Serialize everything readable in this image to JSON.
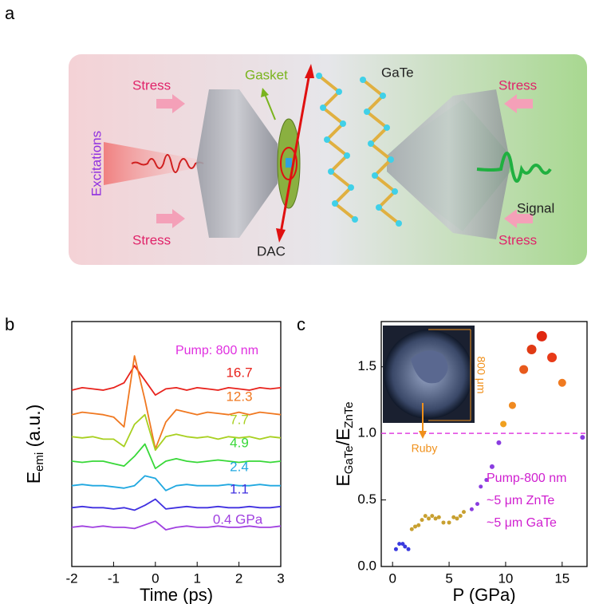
{
  "panel_labels": [
    "a",
    "b",
    "c"
  ],
  "diagram": {
    "stress": [
      "Stress",
      "Stress",
      "Stress",
      "Stress"
    ],
    "gasket": "Gasket",
    "gate": "GaTe",
    "excitations": "Excitations",
    "signal": "Signal",
    "dac": "DAC"
  },
  "chart_data": [
    {
      "type": "line",
      "xlabel": "Time (ps)",
      "ylabel": [
        "E",
        "emi",
        " (a.u.)"
      ],
      "annotation": "Pump: 800 nm",
      "annotation_color": "#e030e0",
      "xlim": [
        -2,
        3
      ],
      "xticks": [
        -2,
        -1,
        0,
        1,
        2,
        3
      ],
      "ylim": [
        0,
        10
      ],
      "x": [
        -2,
        -1.75,
        -1.5,
        -1.25,
        -1,
        -0.75,
        -0.5,
        -0.25,
        0,
        0.25,
        0.5,
        0.75,
        1,
        1.25,
        1.5,
        1.75,
        2,
        2.25,
        2.5,
        2.75,
        3
      ],
      "series": [
        {
          "name": "16.7",
          "color": "#e8221c",
          "values": [
            7.2,
            7.3,
            7.25,
            7.2,
            7.3,
            7.5,
            8.2,
            7.6,
            7.0,
            7.25,
            7.3,
            7.2,
            7.3,
            7.25,
            7.2,
            7.3,
            7.25,
            7.2,
            7.3,
            7.25,
            7.3
          ]
        },
        {
          "name": "12.3",
          "color": "#f07820",
          "values": [
            6.2,
            6.3,
            6.25,
            6.2,
            6.1,
            5.7,
            8.6,
            6.8,
            4.8,
            5.9,
            6.4,
            6.3,
            6.2,
            6.3,
            6.25,
            6.2,
            6.3,
            6.2,
            6.3,
            6.25,
            6.2
          ]
        },
        {
          "name": "7.7",
          "color": "#a8d020",
          "values": [
            5.3,
            5.25,
            5.3,
            5.2,
            5.2,
            4.9,
            5.8,
            6.2,
            4.75,
            5.3,
            5.4,
            5.3,
            5.25,
            5.3,
            5.2,
            5.3,
            5.25,
            5.3,
            5.2,
            5.3,
            5.25
          ]
        },
        {
          "name": "4.9",
          "color": "#38d838",
          "values": [
            4.3,
            4.25,
            4.3,
            4.3,
            4.2,
            4.1,
            4.5,
            5.0,
            4.0,
            4.3,
            4.4,
            4.3,
            4.25,
            4.3,
            4.35,
            4.3,
            4.25,
            4.3,
            4.3,
            4.25,
            4.3
          ]
        },
        {
          "name": "2.4",
          "color": "#20a8e0",
          "values": [
            3.3,
            3.35,
            3.3,
            3.3,
            3.25,
            3.2,
            3.3,
            3.7,
            3.6,
            3.1,
            3.3,
            3.35,
            3.3,
            3.3,
            3.3,
            3.35,
            3.3,
            3.3,
            3.35,
            3.3,
            3.3
          ]
        },
        {
          "name": "1.1",
          "color": "#4030e0",
          "values": [
            2.4,
            2.45,
            2.4,
            2.4,
            2.35,
            2.4,
            2.3,
            2.5,
            2.75,
            2.35,
            2.4,
            2.45,
            2.4,
            2.4,
            2.45,
            2.4,
            2.4,
            2.45,
            2.4,
            2.4,
            2.45
          ]
        },
        {
          "name": "0.4 GPa",
          "color": "#a040e0",
          "values": [
            1.6,
            1.65,
            1.6,
            1.65,
            1.6,
            1.6,
            1.55,
            1.7,
            1.85,
            1.5,
            1.6,
            1.65,
            1.6,
            1.6,
            1.65,
            1.6,
            1.6,
            1.65,
            1.6,
            1.6,
            1.65
          ]
        }
      ]
    },
    {
      "type": "scatter",
      "xlabel": "P (GPa)",
      "ylabel": [
        "E",
        "GaTe",
        "/E",
        "ZnTe"
      ],
      "xlim": [
        -1,
        17.2
      ],
      "xticks": [
        0,
        5,
        10,
        15
      ],
      "ylim": [
        0,
        1.84
      ],
      "yticks": [
        {
          "value": 0,
          "label": "0.0"
        },
        0.5,
        {
          "value": 1,
          "label": "1.0"
        },
        1.5
      ],
      "hline": {
        "y": 1.0,
        "color": "#e040e0"
      },
      "x": [
        0.3,
        0.6,
        0.9,
        1.1,
        1.4,
        1.7,
        2.0,
        2.3,
        2.6,
        2.9,
        3.2,
        3.5,
        3.8,
        4.1,
        4.5,
        5.0,
        5.4,
        5.7,
        6.0,
        6.3,
        7.0,
        7.5,
        7.8,
        8.3,
        8.8,
        9.4,
        9.8,
        10.6,
        11.6,
        12.3,
        13.2,
        14.1,
        15.0,
        16.8
      ],
      "y": [
        0.13,
        0.17,
        0.17,
        0.15,
        0.13,
        0.28,
        0.3,
        0.31,
        0.35,
        0.38,
        0.36,
        0.38,
        0.36,
        0.37,
        0.33,
        0.33,
        0.37,
        0.36,
        0.38,
        0.41,
        0.43,
        0.47,
        0.6,
        0.65,
        0.75,
        0.93,
        1.07,
        1.21,
        1.48,
        1.63,
        1.73,
        1.57,
        1.38,
        0.97
      ],
      "colors": [
        "#3a3adf",
        "#3a3adf",
        "#3a3adf",
        "#3a3adf",
        "#3a3adf",
        "#c8a030",
        "#c8a030",
        "#c8a030",
        "#c8a030",
        "#c8a030",
        "#c8a030",
        "#c8a030",
        "#c8a030",
        "#c8a030",
        "#c8a030",
        "#c8a030",
        "#c8a030",
        "#c8a030",
        "#c8a030",
        "#c8a030",
        "#8a3de0",
        "#8a3de0",
        "#8a3de0",
        "#8a3de0",
        "#8a3de0",
        "#8a3de0",
        "#f0a020",
        "#f08a20",
        "#e85a1c",
        "#e03a14",
        "#e02810",
        "#e83a18",
        "#f07a20",
        "#8a3de0"
      ],
      "sizes": [
        2.5,
        2.5,
        2.5,
        2.5,
        2.5,
        2.5,
        2.5,
        2.5,
        2.5,
        2.5,
        2.5,
        2.5,
        2.5,
        2.5,
        2.5,
        2.5,
        2.5,
        2.5,
        2.5,
        2.5,
        2.5,
        2.5,
        2.5,
        2.5,
        3,
        3,
        4,
        4.5,
        5.5,
        6,
        6.5,
        6,
        5,
        3
      ],
      "inset_labels": {
        "scale": "800 μm",
        "ruby": "Ruby"
      },
      "annotations": [
        "Pump-800 nm",
        "~5 μm ZnTe",
        "~5 μm GaTe"
      ],
      "annotation_color": "#d020d0"
    }
  ]
}
